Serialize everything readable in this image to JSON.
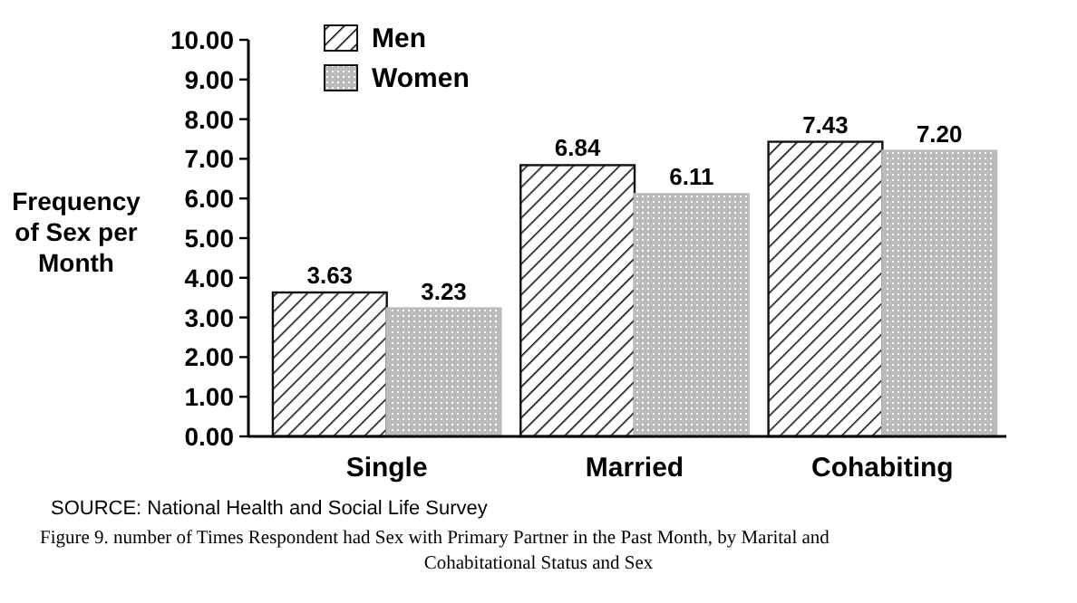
{
  "chart_data": {
    "type": "bar",
    "categories": [
      "Single",
      "Married",
      "Cohabiting"
    ],
    "ylabel": "Frequency of Sex per Month",
    "series": [
      {
        "name": "Men",
        "color": "#111111",
        "values": [
          3.63,
          6.84,
          7.43
        ],
        "value_labels": [
          "3.63",
          "6.84",
          "7.43"
        ]
      },
      {
        "name": "Women",
        "color": "#bbbbbb",
        "values": [
          3.23,
          6.11,
          7.2
        ],
        "value_labels": [
          "3.23",
          "6.11",
          "7.20"
        ]
      }
    ],
    "ylim": [
      0,
      10
    ],
    "yticks": [
      {
        "value": 0,
        "label": "0.00"
      },
      {
        "value": 1,
        "label": "1.00"
      },
      {
        "value": 2,
        "label": "2.00"
      },
      {
        "value": 3,
        "label": "3.00"
      },
      {
        "value": 4,
        "label": "4.00"
      },
      {
        "value": 5,
        "label": "5.00"
      },
      {
        "value": 6,
        "label": "6.00"
      },
      {
        "value": 7,
        "label": "7.00"
      },
      {
        "value": 8,
        "label": "8.00"
      },
      {
        "value": 9,
        "label": "9.00"
      },
      {
        "value": 10,
        "label": "10.00"
      }
    ],
    "grid": false,
    "legend": "top left",
    "annotations": [
      "SOURCE: National Health and Social Life Survey",
      "Figure 9. number of Times Respondent had Sex with Primary Partner in the Past Month, by Marital and Cohabitational Status and Sex"
    ]
  }
}
